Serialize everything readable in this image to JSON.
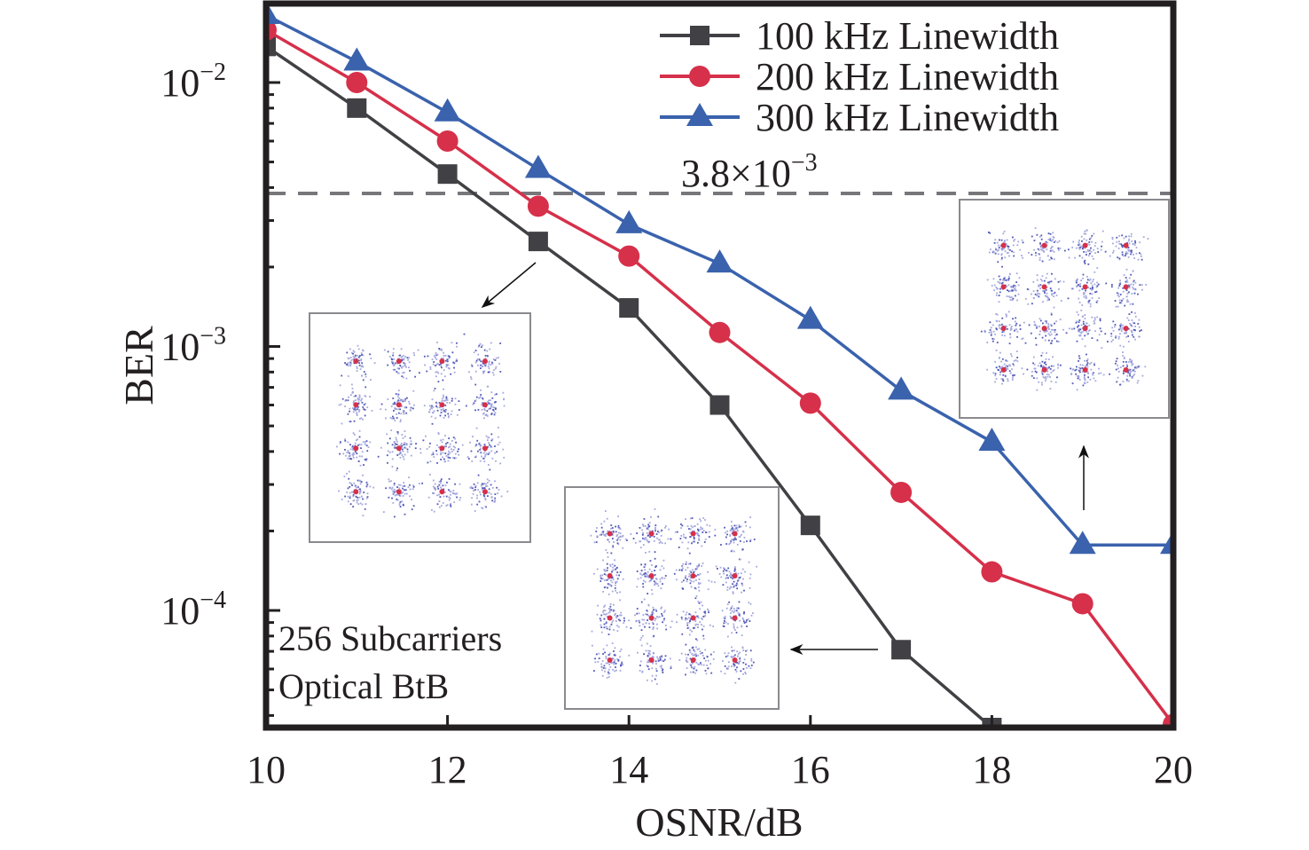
{
  "chart_data": {
    "type": "line",
    "title": "",
    "xlabel": "OSNR/dB",
    "ylabel": "BER",
    "xlim": [
      10,
      20
    ],
    "ylim": [
      3.6e-05,
      0.02
    ],
    "yscale": "log",
    "grid": false,
    "legend_position": "top-right",
    "x_ticks": [
      10,
      12,
      14,
      16,
      18,
      20
    ],
    "x_tick_labels": [
      "10",
      "12",
      "14",
      "16",
      "18",
      "20"
    ],
    "y_ticks": [
      {
        "value": 0.01,
        "base": "10",
        "exp": "−2"
      },
      {
        "value": 0.001,
        "base": "10",
        "exp": "−3"
      },
      {
        "value": 0.0001,
        "base": "10",
        "exp": "−4"
      }
    ],
    "series": [
      {
        "name": "100 kHz Linewidth",
        "color": "#414145",
        "marker": "square",
        "x": [
          10,
          11,
          12,
          13,
          14,
          15,
          16,
          17,
          18
        ],
        "values": [
          0.0137,
          0.008,
          0.0045,
          0.0025,
          0.0014,
          0.0006,
          0.00021,
          7.1e-05,
          3.6e-05
        ]
      },
      {
        "name": "200 kHz Linewidth",
        "color": "#d6304a",
        "marker": "circle",
        "x": [
          10,
          11,
          12,
          13,
          14,
          15,
          16,
          17,
          18,
          19,
          20
        ],
        "values": [
          0.0158,
          0.01,
          0.006,
          0.0034,
          0.0022,
          0.00113,
          0.00061,
          0.00028,
          0.00014,
          0.000106,
          3.7e-05
        ]
      },
      {
        "name": "300 kHz Linewidth",
        "color": "#3a62ad",
        "marker": "triangle",
        "x": [
          10,
          11,
          12,
          13,
          14,
          15,
          16,
          17,
          18,
          19,
          20
        ],
        "values": [
          0.018,
          0.012,
          0.0077,
          0.0047,
          0.0029,
          0.00206,
          0.00126,
          0.00068,
          0.000435,
          0.000177,
          0.000177
        ]
      }
    ],
    "threshold": {
      "value": 0.0038,
      "label_mantissa": "3.8×10",
      "label_exp": "−3",
      "color": "#77777b",
      "style": "dashed"
    },
    "annotations": [
      {
        "text": "256 Subcarriers"
      },
      {
        "text": "Optical BtB"
      }
    ],
    "insets": [
      {
        "name": "constellation-100khz",
        "type": "16QAM constellation",
        "arrow_from": {
          "x": 13,
          "y": 0.0025
        }
      },
      {
        "name": "constellation-200khz",
        "type": "16QAM constellation",
        "arrow_from": {
          "x": 17,
          "y": 7.1e-05
        }
      },
      {
        "name": "constellation-300khz",
        "type": "16QAM constellation",
        "arrow_from": {
          "x": 19,
          "y": 0.000177
        }
      }
    ]
  }
}
